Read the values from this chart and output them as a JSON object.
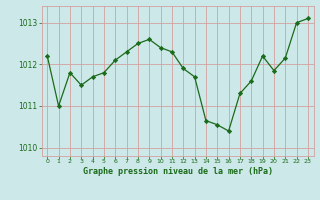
{
  "x": [
    0,
    1,
    2,
    3,
    4,
    5,
    6,
    7,
    8,
    9,
    10,
    11,
    12,
    13,
    14,
    15,
    16,
    17,
    18,
    19,
    20,
    21,
    22,
    23
  ],
  "y": [
    1012.2,
    1011.0,
    1011.8,
    1011.5,
    1011.7,
    1011.8,
    1012.1,
    1012.3,
    1012.5,
    1012.6,
    1012.4,
    1012.3,
    1011.9,
    1011.7,
    1010.65,
    1010.55,
    1010.4,
    1011.3,
    1011.6,
    1012.2,
    1011.85,
    1012.15,
    1013.0,
    1013.1
  ],
  "line_color": "#1a6b1a",
  "marker_color": "#1a6b1a",
  "bg_color": "#cce8e8",
  "grid_color": "#d4a0a0",
  "axis_label_color": "#1a6b1a",
  "tick_color": "#1a6b1a",
  "xlabel": "Graphe pression niveau de la mer (hPa)",
  "ylim": [
    1009.8,
    1013.4
  ],
  "yticks": [
    1010,
    1011,
    1012,
    1013
  ],
  "xticks": [
    0,
    1,
    2,
    3,
    4,
    5,
    6,
    7,
    8,
    9,
    10,
    11,
    12,
    13,
    14,
    15,
    16,
    17,
    18,
    19,
    20,
    21,
    22,
    23
  ]
}
